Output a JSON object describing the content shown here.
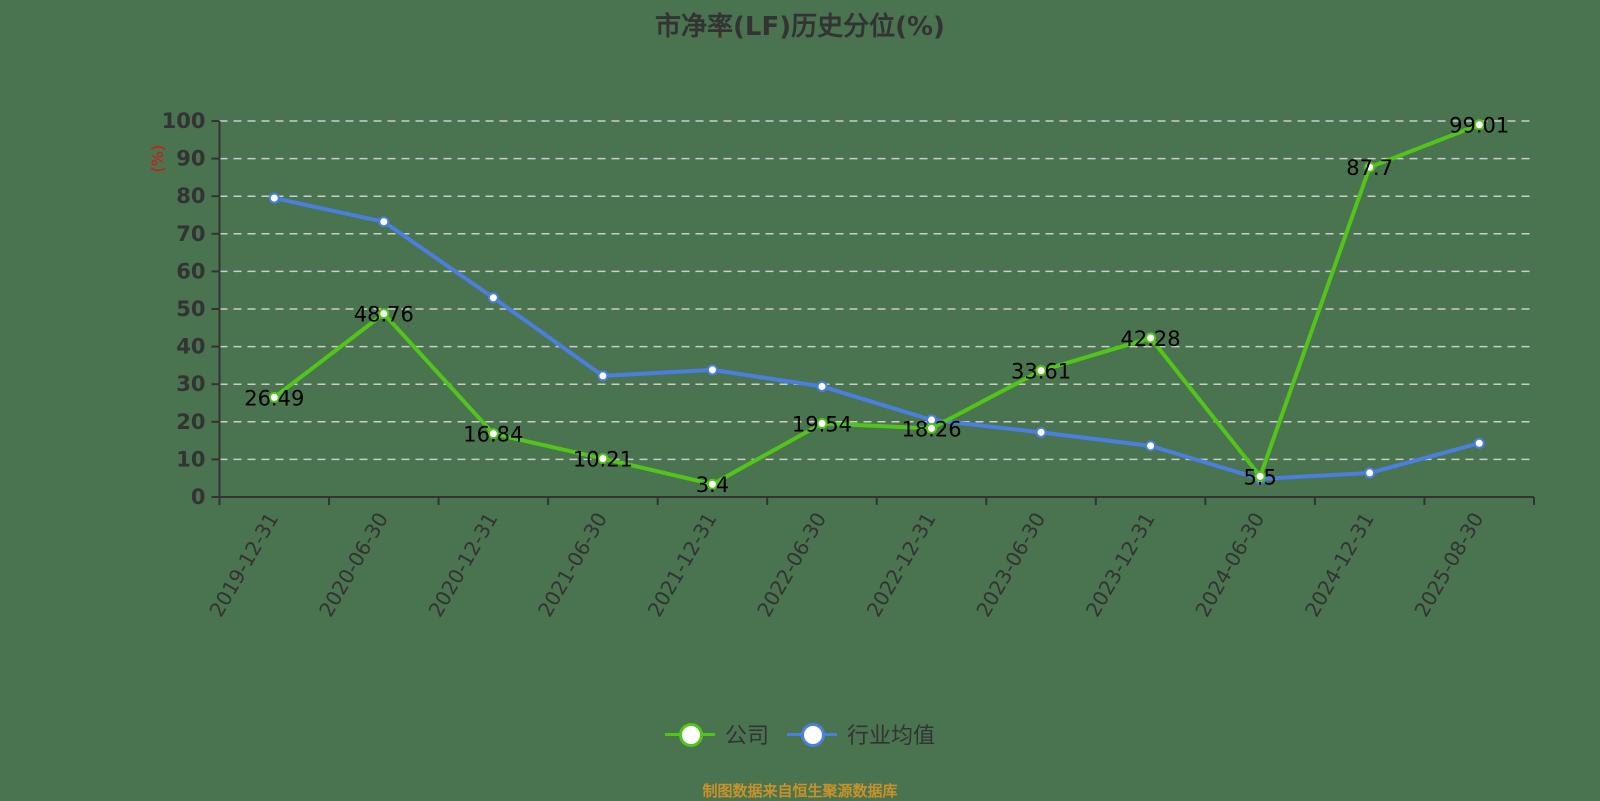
{
  "title": "市净率(LF)历史分位(%)",
  "footer": "制图数据来自恒生聚源数据库",
  "colors": {
    "background": "#4a7350",
    "company": "#52c41a",
    "industry": "#4a7fe0",
    "grid": "#cccccc",
    "axis": "#333333",
    "ylabel": "#e01010",
    "footer": "#c8922a"
  },
  "legend": {
    "items": [
      {
        "label": "公司",
        "color": "#52c41a"
      },
      {
        "label": "行业均值",
        "color": "#4a7fe0"
      }
    ]
  },
  "chart_data": {
    "type": "line",
    "title": "市净率(LF)历史分位(%)",
    "xlabel": "",
    "ylabel": "(%)",
    "ylim": [
      0,
      100
    ],
    "yticks": [
      0,
      10,
      20,
      30,
      40,
      50,
      60,
      70,
      80,
      90,
      100
    ],
    "grid": true,
    "legend_position": "bottom",
    "categories": [
      "2019-12-31",
      "2020-06-30",
      "2020-12-31",
      "2021-06-30",
      "2021-12-31",
      "2022-06-30",
      "2022-12-31",
      "2023-06-30",
      "2023-12-31",
      "2024-06-30",
      "2024-12-31",
      "2025-08-30"
    ],
    "series": [
      {
        "name": "公司",
        "values": [
          26.49,
          48.76,
          16.84,
          10.21,
          3.4,
          19.54,
          18.26,
          33.61,
          42.28,
          5.5,
          87.7,
          99.01
        ],
        "labels_shown": true
      },
      {
        "name": "行业均值",
        "values": [
          79.5,
          73.2,
          53.0,
          32.2,
          33.8,
          29.4,
          20.5,
          17.2,
          13.6,
          4.8,
          6.4,
          14.3
        ],
        "labels_shown": false
      }
    ]
  }
}
